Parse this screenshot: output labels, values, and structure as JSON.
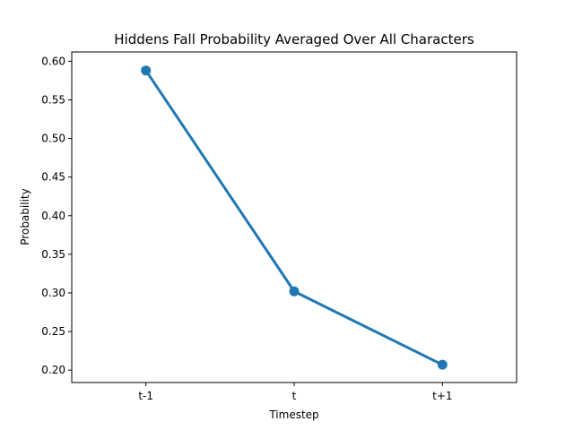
{
  "chart_data": {
    "type": "line",
    "title": "Hiddens Fall Probability Averaged Over All Characters",
    "xlabel": "Timestep",
    "ylabel": "Probability",
    "categories": [
      "t-1",
      "t",
      "t+1"
    ],
    "series": [
      {
        "values": [
          0.588,
          0.302,
          0.207
        ],
        "color": "#1f77b4"
      }
    ],
    "ylim": [
      0.184,
      0.612
    ],
    "yticks": [
      "0.20",
      "0.25",
      "0.30",
      "0.35",
      "0.40",
      "0.45",
      "0.50",
      "0.55",
      "0.60"
    ],
    "grid": false,
    "legend": "none"
  }
}
